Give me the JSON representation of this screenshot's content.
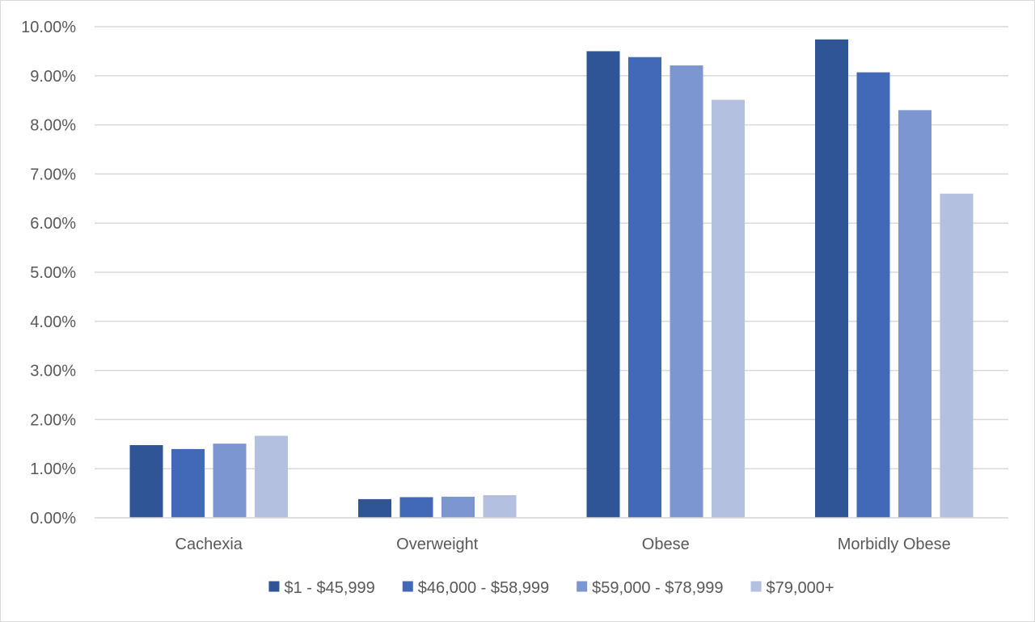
{
  "chart_data": {
    "type": "bar",
    "title": "",
    "xlabel": "",
    "ylabel": "",
    "categories": [
      "Cachexia",
      "Overweight",
      "Obese",
      "Morbidly Obese"
    ],
    "series": [
      {
        "name": "$1 - $45,999",
        "color": "#2f5597",
        "values": [
          1.48,
          0.38,
          9.5,
          9.74
        ]
      },
      {
        "name": "$46,000 - $58,999",
        "color": "#4169b8",
        "values": [
          1.4,
          0.42,
          9.38,
          9.07
        ]
      },
      {
        "name": "$59,000 - $78,999",
        "color": "#7b96d0",
        "values": [
          1.51,
          0.43,
          9.21,
          8.3
        ]
      },
      {
        "name": "$79,000+",
        "color": "#b4c0e0",
        "values": [
          1.67,
          0.46,
          8.51,
          6.6
        ]
      }
    ],
    "ylim": [
      0,
      10
    ],
    "ytick_step": 1,
    "ytick_labels": [
      "0.00%",
      "1.00%",
      "2.00%",
      "3.00%",
      "4.00%",
      "5.00%",
      "6.00%",
      "7.00%",
      "8.00%",
      "9.00%",
      "10.00%"
    ],
    "grid": true,
    "grid_color": "#d9d9d9",
    "legend_position": "bottom"
  }
}
